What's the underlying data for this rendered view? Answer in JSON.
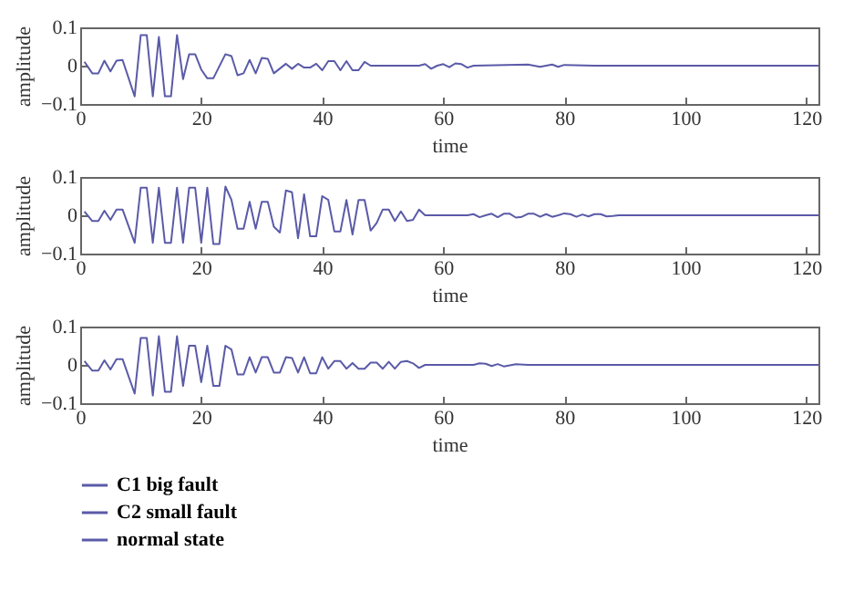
{
  "chart_data": [
    {
      "type": "line",
      "xlabel": "time",
      "ylabel": "amplitude",
      "xlim": [
        0,
        122
      ],
      "xticks": [
        0,
        20,
        40,
        60,
        80,
        100,
        120
      ],
      "ylim": [
        -0.1,
        0.1
      ],
      "yticks": [
        -0.1,
        0,
        0.1
      ],
      "legend": "bottom",
      "x": [
        0.7,
        2,
        3,
        4,
        5,
        6,
        7,
        9,
        10,
        11,
        12,
        13,
        14,
        15,
        16,
        17,
        18,
        19,
        20,
        21,
        22,
        24,
        25,
        26,
        27,
        28,
        29,
        30,
        31,
        32,
        34,
        35,
        36,
        37,
        38,
        39,
        40,
        41,
        42,
        43,
        44,
        45,
        46,
        47,
        48,
        56,
        57,
        58,
        59,
        60,
        61,
        62,
        63,
        64,
        65,
        74,
        76,
        78,
        79,
        80,
        85,
        122
      ],
      "series": [
        {
          "name": "C1 big fault",
          "color": "#5a5aa8",
          "values": [
            0.01,
            -0.02,
            -0.02,
            0.013,
            -0.015,
            0.013,
            0.015,
            -0.08,
            0.08,
            0.08,
            -0.08,
            0.075,
            -0.08,
            -0.08,
            0.08,
            -0.035,
            0.03,
            0.03,
            -0.01,
            -0.033,
            -0.033,
            0.03,
            0.025,
            -0.025,
            -0.02,
            0.015,
            -0.02,
            0.02,
            0.018,
            -0.02,
            0.005,
            -0.008,
            0.005,
            -0.005,
            -0.005,
            0.005,
            -0.012,
            0.012,
            0.012,
            -0.012,
            0.012,
            -0.012,
            -0.012,
            0.01,
            0,
            0,
            0.004,
            -0.008,
            0,
            0.004,
            -0.004,
            0.006,
            0.004,
            -0.005,
            0,
            0.003,
            -0.003,
            0.003,
            -0.003,
            0.002,
            0,
            0
          ]
        }
      ]
    },
    {
      "type": "line",
      "xlabel": "time",
      "ylabel": "amplitude",
      "xlim": [
        0,
        122
      ],
      "xticks": [
        0,
        20,
        40,
        60,
        80,
        100,
        120
      ],
      "ylim": [
        -0.1,
        0.1
      ],
      "yticks": [
        -0.1,
        0,
        0.1
      ],
      "legend": "bottom",
      "x": [
        0.7,
        2,
        3,
        4,
        5,
        6,
        7,
        9,
        10,
        11,
        12,
        13,
        14,
        15,
        16,
        17,
        18,
        19,
        20,
        21,
        22,
        23,
        24,
        25,
        26,
        27,
        28,
        29,
        30,
        31,
        32,
        33,
        34,
        35,
        36,
        37,
        38,
        39,
        40,
        41,
        42,
        43,
        44,
        45,
        46,
        47,
        48,
        49,
        50,
        51,
        52,
        53,
        54,
        55,
        56,
        57,
        64,
        65,
        66,
        67,
        68,
        69,
        70,
        71,
        72,
        73,
        74,
        75,
        76,
        77,
        78,
        79,
        80,
        81,
        82,
        83,
        84,
        85,
        86,
        87,
        88,
        89,
        122
      ],
      "series": [
        {
          "name": "C2 small fault",
          "color": "#5a5aa8",
          "values": [
            0.01,
            -0.015,
            -0.015,
            0.012,
            -0.012,
            0.015,
            0.015,
            -0.072,
            0.072,
            0.072,
            -0.072,
            0.072,
            -0.072,
            -0.072,
            0.072,
            -0.072,
            0.072,
            0.072,
            -0.072,
            0.072,
            -0.075,
            -0.075,
            0.075,
            0.04,
            -0.035,
            -0.035,
            0.035,
            -0.035,
            0.035,
            0.035,
            -0.03,
            -0.045,
            0.065,
            0.06,
            -0.06,
            0.055,
            -0.055,
            -0.055,
            0.05,
            0.04,
            -0.042,
            -0.042,
            0.04,
            -0.05,
            0.04,
            0.04,
            -0.04,
            -0.02,
            0.015,
            0.015,
            -0.015,
            0.01,
            -0.015,
            -0.012,
            0.015,
            0,
            0,
            0.003,
            -0.005,
            0,
            0.004,
            -0.005,
            0.004,
            0.004,
            -0.006,
            -0.004,
            0.004,
            0.004,
            -0.004,
            0.003,
            -0.004,
            0,
            0.005,
            0.003,
            -0.004,
            0.002,
            -0.003,
            0.003,
            0.003,
            -0.003,
            -0.002,
            0,
            0
          ]
        }
      ]
    },
    {
      "type": "line",
      "xlabel": "time",
      "ylabel": "amplitude",
      "xlim": [
        0,
        122
      ],
      "xticks": [
        0,
        20,
        40,
        60,
        80,
        100,
        120
      ],
      "ylim": [
        -0.1,
        0.1
      ],
      "yticks": [
        -0.1,
        0,
        0.1
      ],
      "legend": "bottom",
      "x": [
        0.7,
        2,
        3,
        4,
        5,
        6,
        7,
        9,
        10,
        11,
        12,
        13,
        14,
        15,
        16,
        17,
        18,
        19,
        20,
        21,
        22,
        23,
        24,
        25,
        26,
        27,
        28,
        29,
        30,
        31,
        32,
        33,
        34,
        35,
        36,
        37,
        38,
        39,
        40,
        41,
        42,
        43,
        44,
        45,
        46,
        47,
        48,
        49,
        50,
        51,
        52,
        53,
        54,
        55,
        56,
        57,
        65,
        66,
        67,
        68,
        69,
        70,
        72,
        74,
        122
      ],
      "series": [
        {
          "name": "normal state",
          "color": "#5a5aa8",
          "values": [
            0.01,
            -0.015,
            -0.015,
            0.012,
            -0.012,
            0.015,
            0.015,
            -0.075,
            0.07,
            0.07,
            -0.08,
            0.075,
            -0.07,
            -0.07,
            0.075,
            -0.055,
            0.05,
            0.05,
            -0.045,
            0.05,
            -0.055,
            -0.055,
            0.05,
            0.04,
            -0.025,
            -0.025,
            0.02,
            -0.02,
            0.02,
            0.02,
            -0.02,
            -0.02,
            0.02,
            0.018,
            -0.02,
            0.02,
            -0.022,
            -0.022,
            0.02,
            -0.01,
            0.01,
            0.01,
            -0.01,
            0.005,
            -0.01,
            -0.01,
            0.006,
            0.006,
            -0.01,
            0.008,
            -0.01,
            0.008,
            0.01,
            0.004,
            -0.008,
            0,
            0,
            0.004,
            0.003,
            -0.003,
            0.002,
            -0.004,
            0.002,
            0,
            0
          ]
        }
      ]
    }
  ]
}
